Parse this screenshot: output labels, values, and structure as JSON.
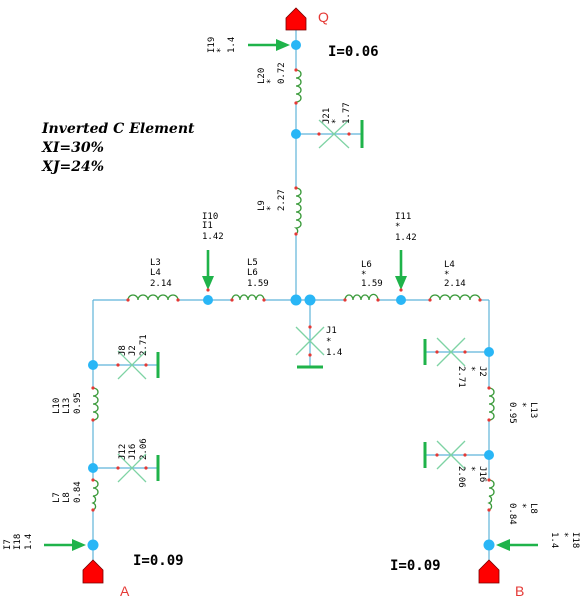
{
  "title_block": {
    "line1": "Inverted C Element",
    "line2": "XI=30%",
    "line3": "XJ=24%"
  },
  "ports": {
    "q": "Q",
    "a": "A",
    "b": "B"
  },
  "currents": {
    "i_top": "I=0.06",
    "i_left": "I=0.09",
    "i_right": "I=0.09"
  },
  "sources": {
    "i19": {
      "name": "I19",
      "value": "1.4"
    },
    "i10": {
      "name": "I10",
      "sub": "I1",
      "value": "1.42"
    },
    "i11": {
      "name": "I11",
      "value": "1.42"
    },
    "i7": {
      "name": "I7",
      "sub": "I18",
      "value": "1.4"
    },
    "i18": {
      "name": "I18",
      "value": "1.4"
    }
  },
  "inductors": {
    "l20": {
      "name": "L20",
      "value": "0.72"
    },
    "l9": {
      "name": "L9",
      "value": "2.27"
    },
    "l3": {
      "name": "L3",
      "sub": "L4",
      "value": "2.14"
    },
    "l5": {
      "name": "L5",
      "sub": "L6",
      "value": "1.59"
    },
    "l6": {
      "name": "L6",
      "value": "1.59"
    },
    "l4": {
      "name": "L4",
      "value": "2.14"
    },
    "l10": {
      "name": "L10",
      "sub": "L13",
      "value": "0.95"
    },
    "l7": {
      "name": "L7",
      "sub": "L8",
      "value": "0.84"
    },
    "l13": {
      "name": "L13",
      "value": "0.95"
    },
    "l8": {
      "name": "L8",
      "value": "0.84"
    }
  },
  "junctions": {
    "j21": {
      "name": "J21",
      "value": "1.77"
    },
    "j1": {
      "name": "J1",
      "value": "1.4"
    },
    "j8": {
      "name": "J8",
      "sub": "J2",
      "value": "2.71"
    },
    "j12": {
      "name": "J12",
      "sub": "J16",
      "value": "2.06"
    },
    "j2": {
      "name": "J2",
      "value": "2.71"
    },
    "j16": {
      "name": "J16",
      "value": "2.06"
    }
  },
  "mark": "*"
}
